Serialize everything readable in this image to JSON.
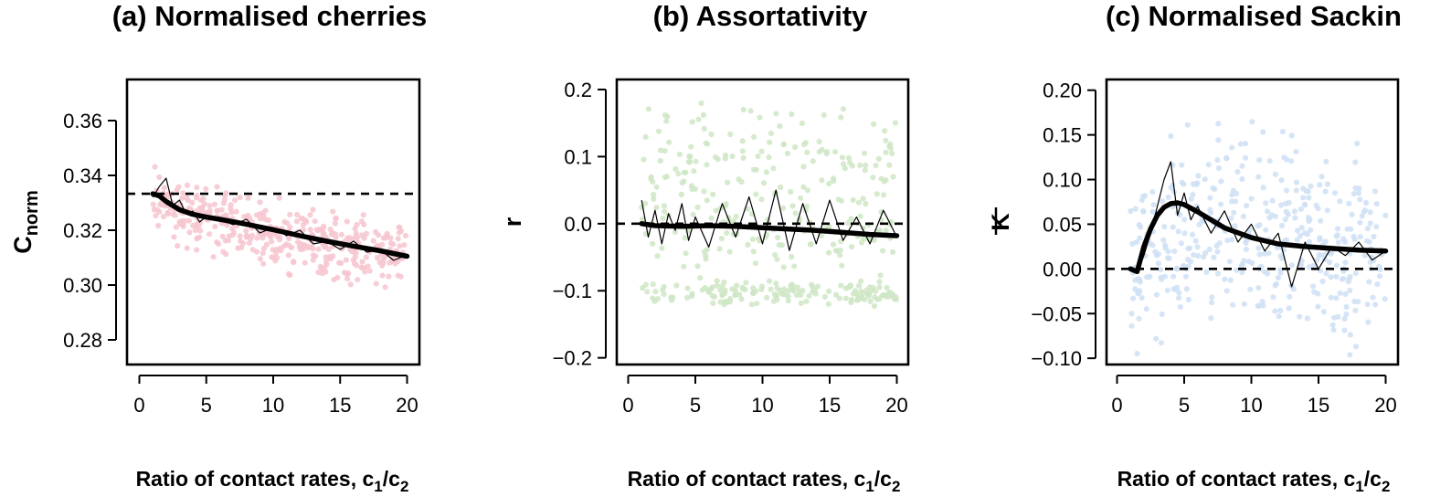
{
  "chart_data": [
    {
      "id": "a",
      "type": "scatter",
      "title": "(a) Normalised cherries",
      "xlabel": "Ratio of contact rates, c",
      "xlabel_sub1": "1",
      "xlabel_slash": "/c",
      "xlabel_sub2": "2",
      "ylabel_main": "C",
      "ylabel_sub": "norm",
      "xlim": [
        0,
        20
      ],
      "ylim": [
        0.271,
        0.375
      ],
      "xticks": [
        0,
        5,
        10,
        15,
        20
      ],
      "xtick_labels": [
        "0",
        "5",
        "10",
        "15",
        "20"
      ],
      "yticks": [
        0.28,
        0.3,
        0.32,
        0.34,
        0.36
      ],
      "ytick_labels": [
        "0.28",
        "0.30",
        "0.32",
        "0.34",
        "0.36"
      ],
      "reference_y": 0.3333,
      "point_color": "#f7c6cf",
      "scatter_center": [
        [
          1,
          0.335
        ],
        [
          2,
          0.33
        ],
        [
          3,
          0.326
        ],
        [
          5,
          0.324
        ],
        [
          8,
          0.321
        ],
        [
          10,
          0.319
        ],
        [
          12,
          0.317
        ],
        [
          15,
          0.314
        ],
        [
          18,
          0.312
        ],
        [
          20,
          0.31
        ]
      ],
      "scatter_spread": 0.0095,
      "series": [
        {
          "kind": "smooth",
          "x": [
            1,
            1.5,
            2,
            3,
            4,
            5,
            6,
            8,
            10,
            12,
            14,
            16,
            18,
            20
          ],
          "y": [
            0.3333,
            0.3325,
            0.3305,
            0.3275,
            0.3258,
            0.3248,
            0.324,
            0.3222,
            0.3202,
            0.318,
            0.316,
            0.3142,
            0.3125,
            0.3105
          ]
        },
        {
          "kind": "mean",
          "x": [
            1,
            1.5,
            2,
            2.5,
            3,
            3.5,
            4,
            4.5,
            5,
            6,
            7,
            8,
            9,
            10,
            11,
            12,
            13,
            14,
            15,
            16,
            17,
            18,
            19,
            20
          ],
          "y": [
            0.332,
            0.336,
            0.339,
            0.329,
            0.331,
            0.326,
            0.327,
            0.323,
            0.325,
            0.324,
            0.322,
            0.324,
            0.319,
            0.321,
            0.318,
            0.32,
            0.315,
            0.316,
            0.313,
            0.316,
            0.312,
            0.313,
            0.309,
            0.311
          ]
        }
      ]
    },
    {
      "id": "b",
      "type": "scatter",
      "title": "(b) Assortativity",
      "xlabel": "Ratio of contact rates, c",
      "xlabel_sub1": "1",
      "xlabel_slash": "/c",
      "xlabel_sub2": "2",
      "ylabel_main": "r",
      "ylabel_sub": "",
      "xlim": [
        0,
        20
      ],
      "ylim": [
        -0.21,
        0.215
      ],
      "xticks": [
        0,
        5,
        10,
        15,
        20
      ],
      "xtick_labels": [
        "0",
        "5",
        "10",
        "15",
        "20"
      ],
      "yticks": [
        -0.2,
        -0.1,
        0.0,
        0.1,
        0.2
      ],
      "ytick_labels": [
        "−0.2",
        "−0.1",
        "0.0",
        "0.1",
        "0.2"
      ],
      "reference_y": 0.0,
      "point_color": "#cfe6c6",
      "scatter_bands": [
        [
          -0.105,
          0.015
        ],
        [
          0.0,
          0.06
        ],
        [
          0.1,
          0.06
        ]
      ],
      "series": [
        {
          "kind": "smooth",
          "x": [
            1,
            2,
            4,
            6,
            8,
            10,
            12,
            14,
            16,
            18,
            20
          ],
          "y": [
            0.0,
            -0.003,
            -0.004,
            -0.003,
            -0.004,
            -0.006,
            -0.008,
            -0.01,
            -0.013,
            -0.016,
            -0.018
          ]
        },
        {
          "kind": "mean",
          "x": [
            1,
            1.5,
            2,
            2.5,
            3,
            3.5,
            4,
            4.5,
            5,
            6,
            7,
            8,
            9,
            10,
            11,
            12,
            13,
            14,
            15,
            16,
            17,
            18,
            19,
            20
          ],
          "y": [
            0.035,
            -0.02,
            0.02,
            -0.03,
            0.015,
            -0.01,
            0.03,
            -0.025,
            0.01,
            -0.035,
            0.03,
            -0.02,
            0.04,
            -0.03,
            0.05,
            -0.04,
            0.03,
            -0.03,
            0.035,
            -0.025,
            0.01,
            -0.03,
            0.02,
            -0.02
          ]
        }
      ]
    },
    {
      "id": "c",
      "type": "scatter",
      "title": "(c) Normalised Sackin",
      "xlabel": "Ratio of contact rates, c",
      "xlabel_sub1": "1",
      "xlabel_slash": "/c",
      "xlabel_sub2": "2",
      "ylabel_main": "K",
      "ylabel_sub": "",
      "xlim": [
        0,
        20
      ],
      "ylim": [
        -0.107,
        0.212
      ],
      "xticks": [
        0,
        5,
        10,
        15,
        20
      ],
      "xtick_labels": [
        "0",
        "5",
        "10",
        "15",
        "20"
      ],
      "yticks": [
        -0.1,
        -0.05,
        0.0,
        0.05,
        0.1,
        0.15,
        0.2
      ],
      "ytick_labels": [
        "−0.10",
        "−0.05",
        "0.00",
        "0.05",
        "0.10",
        "0.15",
        "0.20"
      ],
      "reference_y": 0.0,
      "point_color": "#cfe0f5",
      "scatter_center": [
        [
          1,
          0.0
        ],
        [
          5,
          0.05
        ],
        [
          10,
          0.04
        ],
        [
          15,
          0.03
        ],
        [
          20,
          0.02
        ]
      ],
      "scatter_spread": 0.09,
      "series": [
        {
          "kind": "smooth",
          "x": [
            1,
            1.5,
            2,
            2.5,
            3,
            3.5,
            4,
            4.5,
            5,
            6,
            7,
            8,
            10,
            12,
            14,
            16,
            18,
            20
          ],
          "y": [
            0.0,
            -0.003,
            0.025,
            0.045,
            0.06,
            0.069,
            0.073,
            0.074,
            0.072,
            0.064,
            0.055,
            0.046,
            0.035,
            0.028,
            0.025,
            0.023,
            0.021,
            0.02
          ]
        },
        {
          "kind": "mean",
          "x": [
            1,
            1.5,
            2,
            2.5,
            3,
            3.5,
            4,
            4.5,
            5,
            5.5,
            6,
            7,
            8,
            9,
            10,
            11,
            12,
            13,
            14,
            15,
            16,
            17,
            18,
            19,
            20
          ],
          "y": [
            0.0,
            -0.005,
            0.015,
            0.04,
            0.07,
            0.1,
            0.12,
            0.06,
            0.085,
            0.055,
            0.07,
            0.04,
            0.065,
            0.03,
            0.05,
            0.02,
            0.04,
            -0.02,
            0.03,
            0.0,
            0.025,
            0.015,
            0.03,
            0.01,
            0.02
          ]
        }
      ]
    }
  ]
}
